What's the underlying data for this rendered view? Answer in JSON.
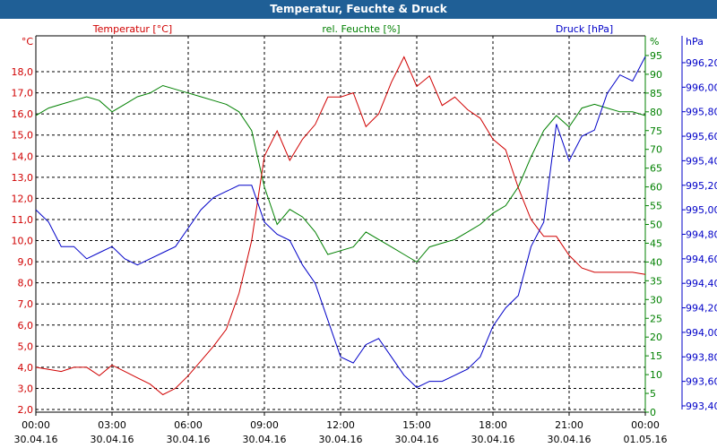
{
  "window": {
    "title": "Temperatur, Feuchte & Druck"
  },
  "chart_data": {
    "type": "line",
    "title": "Temperatur, Feuchte & Druck",
    "x_hours": [
      0,
      0.5,
      1,
      1.5,
      2,
      2.5,
      3,
      3.5,
      4,
      4.5,
      5,
      5.5,
      6,
      6.5,
      7,
      7.5,
      8,
      8.5,
      9,
      9.5,
      10,
      10.5,
      11,
      11.5,
      12,
      12.5,
      13,
      13.5,
      14,
      14.5,
      15,
      15.5,
      16,
      16.5,
      17,
      17.5,
      18,
      18.5,
      19,
      19.5,
      20,
      20.5,
      21,
      21.5,
      22,
      22.5,
      23,
      23.5,
      24
    ],
    "xticks": [
      {
        "time": "00:00",
        "date": "30.04.16"
      },
      {
        "time": "03:00",
        "date": "30.04.16"
      },
      {
        "time": "06:00",
        "date": "30.04.16"
      },
      {
        "time": "09:00",
        "date": "30.04.16"
      },
      {
        "time": "12:00",
        "date": "30.04.16"
      },
      {
        "time": "15:00",
        "date": "30.04.16"
      },
      {
        "time": "18:00",
        "date": "30.04.16"
      },
      {
        "time": "21:00",
        "date": "30.04.16"
      },
      {
        "time": "00:00",
        "date": "01.05.16"
      }
    ],
    "series": [
      {
        "name": "Temperatur [°C]",
        "unit": "°C",
        "color": "#d00000",
        "ylim": [
          2.0,
          19.7
        ],
        "ticks": [
          "2,0",
          "3,0",
          "4,0",
          "5,0",
          "6,0",
          "7,0",
          "8,0",
          "9,0",
          "10,0",
          "11,0",
          "12,0",
          "13,0",
          "14,0",
          "15,0",
          "16,0",
          "17,0",
          "18,0"
        ],
        "values": [
          4.0,
          3.9,
          3.8,
          4.0,
          4.0,
          3.6,
          4.1,
          3.8,
          3.5,
          3.2,
          2.7,
          3.0,
          3.6,
          4.3,
          5.0,
          5.8,
          7.5,
          10.0,
          14.0,
          15.2,
          13.8,
          14.8,
          15.5,
          16.8,
          16.8,
          17.0,
          15.4,
          16.0,
          17.5,
          18.7,
          17.3,
          17.8,
          16.4,
          16.8,
          16.2,
          15.8,
          14.8,
          14.3,
          12.5,
          11.0,
          10.2,
          10.2,
          9.3,
          8.7,
          8.5,
          8.5,
          8.5,
          8.5,
          8.4
        ]
      },
      {
        "name": "rel. Feuchte [%]",
        "unit": "%",
        "color": "#008000",
        "ylim": [
          0,
          100
        ],
        "ticks": [
          "0",
          "5",
          "10",
          "15",
          "20",
          "25",
          "30",
          "35",
          "40",
          "45",
          "50",
          "55",
          "60",
          "65",
          "70",
          "75",
          "80",
          "85",
          "90",
          "95"
        ],
        "values": [
          79,
          81,
          82,
          83,
          84,
          83,
          80,
          82,
          84,
          85,
          87,
          86,
          85,
          84,
          83,
          82,
          80,
          75,
          60,
          50,
          54,
          52,
          48,
          42,
          43,
          44,
          48,
          46,
          44,
          42,
          40,
          44,
          45,
          46,
          48,
          50,
          53,
          55,
          60,
          68,
          75,
          79,
          76,
          81,
          82,
          81,
          80,
          80,
          79
        ]
      },
      {
        "name": "Druck [hPa]",
        "unit": "hPa",
        "color": "#0000c8",
        "ylim": [
          993.37,
          996.3
        ],
        "ticks": [
          "993,40",
          "993,60",
          "993,80",
          "994,00",
          "994,20",
          "994,40",
          "994,60",
          "994,80",
          "995,00",
          "995,20",
          "995,40",
          "995,60",
          "995,80",
          "996,00",
          "996,20"
        ],
        "values": [
          995.0,
          994.9,
          994.7,
          994.7,
          994.6,
          994.65,
          994.7,
          994.6,
          994.55,
          994.6,
          994.65,
          994.7,
          994.85,
          995.0,
          995.1,
          995.15,
          995.2,
          995.2,
          994.9,
          994.8,
          994.75,
          994.55,
          994.4,
          994.1,
          993.8,
          993.75,
          993.9,
          993.95,
          993.8,
          993.65,
          993.55,
          993.6,
          993.6,
          993.65,
          993.7,
          993.8,
          994.05,
          994.2,
          994.3,
          994.7,
          994.9,
          995.7,
          995.4,
          995.6,
          995.65,
          995.95,
          996.1,
          996.05,
          996.25
        ]
      }
    ],
    "grid": true,
    "legend": "top"
  }
}
